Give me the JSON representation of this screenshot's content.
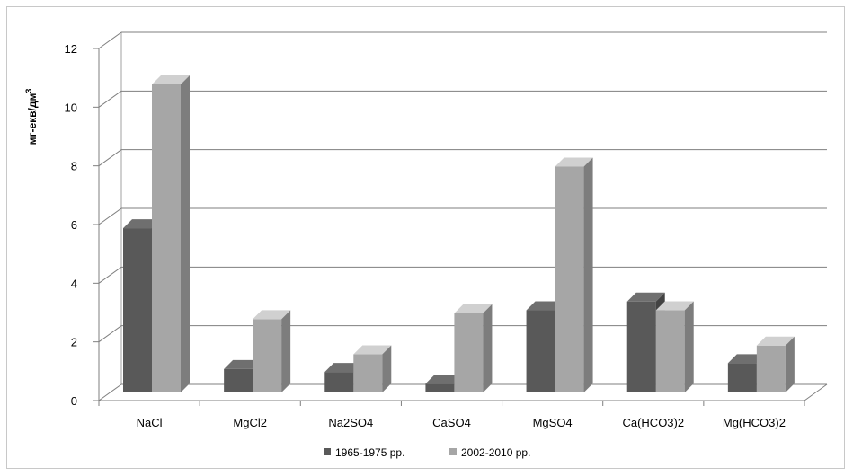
{
  "chart_data": {
    "type": "bar",
    "style": "3d-clustered-column",
    "title": "",
    "ylabel_main": "мг-екв/дм",
    "ylabel_sup": "3",
    "xlabel": "",
    "ylim": [
      0,
      12
    ],
    "yticks": [
      "0",
      "2",
      "4",
      "6",
      "8",
      "10",
      "12"
    ],
    "categories": [
      "NaCl",
      "MgCl2",
      "Na2SO4",
      "CaSO4",
      "MgSO4",
      "Ca(HCO3)2",
      "Mg(HCO3)2"
    ],
    "series": [
      {
        "name": "1965-1975 рр.",
        "color": "#595959",
        "values": [
          5.6,
          0.8,
          0.7,
          0.3,
          2.8,
          3.1,
          1.0
        ]
      },
      {
        "name": "2002-2010 рр.",
        "color": "#a6a6a6",
        "values": [
          10.5,
          2.5,
          1.3,
          2.7,
          7.7,
          2.8,
          1.6
        ]
      }
    ],
    "grid": true,
    "legend_position": "bottom"
  }
}
